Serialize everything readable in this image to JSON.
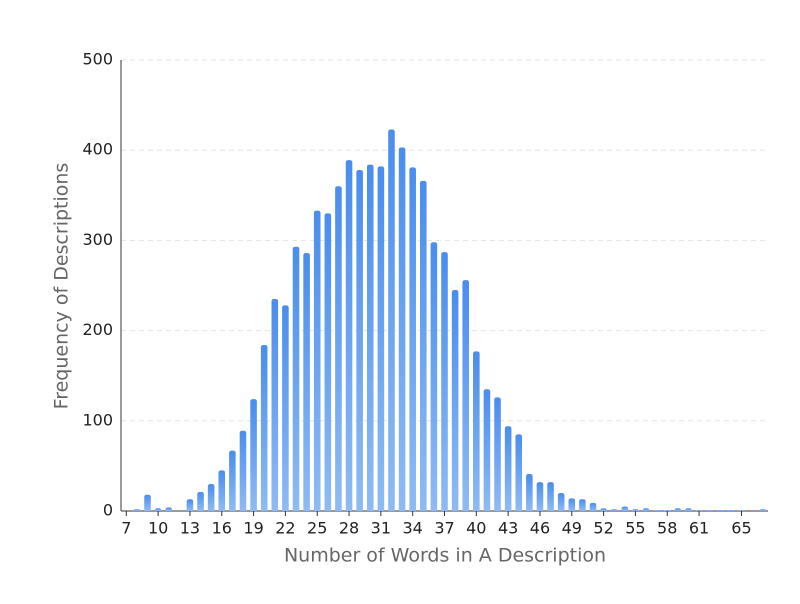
{
  "chart_data": {
    "type": "bar",
    "x_label": "Number of Words in A Description",
    "y_label": "Frequency of Descriptions",
    "categories": [
      7,
      null,
      null,
      10,
      null,
      null,
      13,
      null,
      null,
      16,
      null,
      null,
      19,
      null,
      null,
      22,
      null,
      null,
      25,
      null,
      null,
      28,
      null,
      null,
      31,
      null,
      null,
      34,
      null,
      null,
      37,
      null,
      null,
      40,
      null,
      null,
      43,
      null,
      null,
      46,
      null,
      null,
      49,
      null,
      null,
      52,
      null,
      null,
      55,
      null,
      null,
      58,
      null,
      null,
      61,
      null,
      null,
      null,
      65,
      null,
      null
    ],
    "values": [
      0,
      2,
      18,
      3,
      4,
      0,
      13,
      21,
      30,
      45,
      67,
      89,
      124,
      184,
      235,
      228,
      293,
      286,
      333,
      330,
      360,
      389,
      378,
      384,
      382,
      423,
      403,
      381,
      366,
      298,
      287,
      245,
      256,
      177,
      135,
      126,
      94,
      85,
      41,
      32,
      32,
      20,
      14,
      13,
      9,
      3,
      2,
      5,
      2,
      3,
      1,
      1,
      3,
      3,
      1,
      1,
      1,
      1,
      1,
      0,
      2
    ],
    "color": [
      "#4a8ded",
      "#8fbbf4"
    ],
    "ylim": [
      0,
      500
    ],
    "yticks": [
      0,
      100,
      200,
      300,
      400,
      500
    ],
    "grid": true
  }
}
